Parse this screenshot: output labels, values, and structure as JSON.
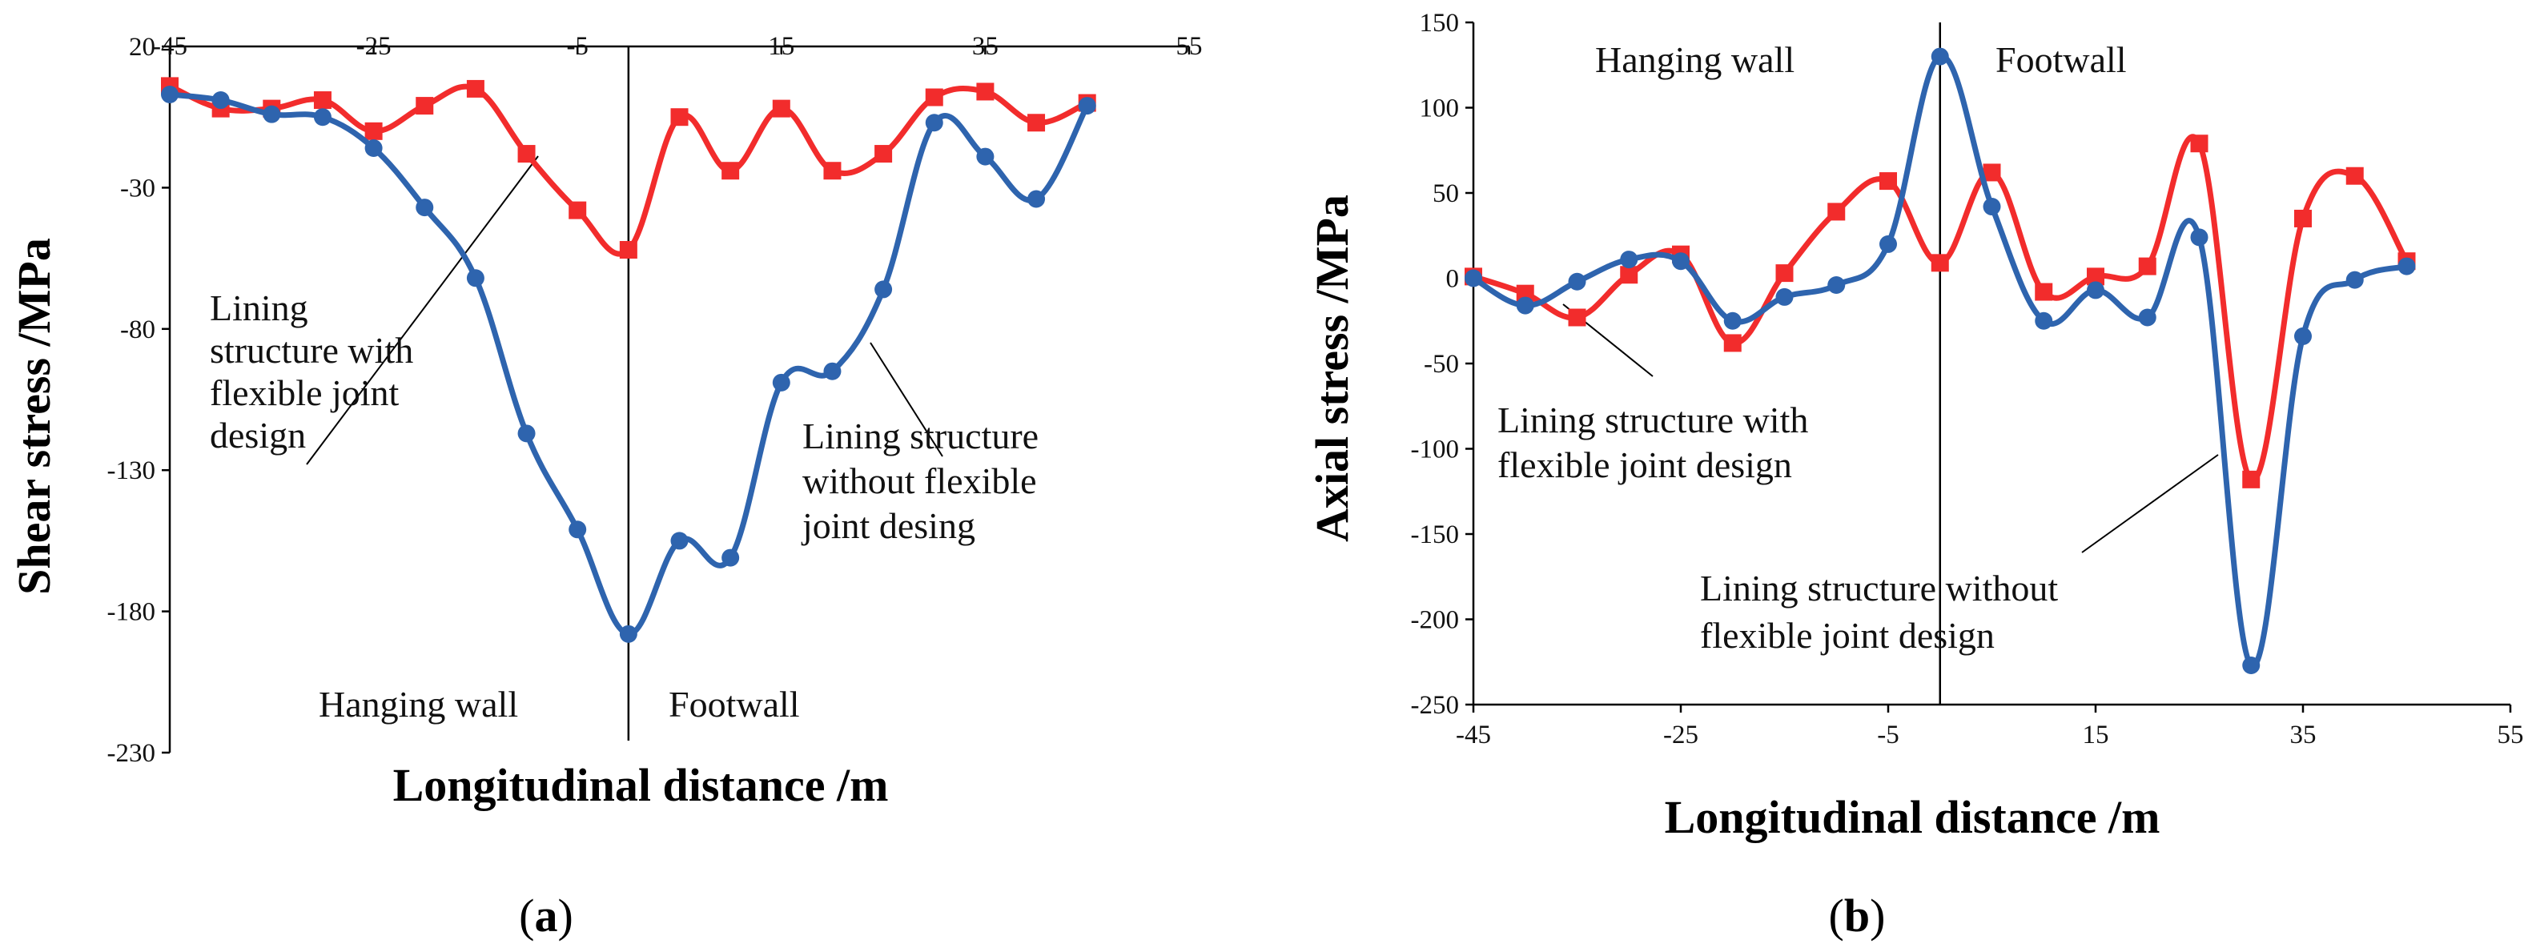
{
  "figure": {
    "panels": [
      {
        "label_open": "(",
        "label_letter": "a",
        "label_close": ")"
      },
      {
        "label_open": "(",
        "label_letter": "b",
        "label_close": ")"
      }
    ]
  },
  "chart_data": [
    {
      "type": "line",
      "panel": "a",
      "title": "",
      "xlabel": "Longitudinal distance /m",
      "ylabel": "Shear stress /MPa",
      "xlim": [
        -45,
        55
      ],
      "ylim": [
        -230,
        20
      ],
      "xticks": [
        -45,
        -25,
        -5,
        15,
        35,
        55
      ],
      "yticks": [
        20,
        -30,
        -80,
        -130,
        -180,
        -230
      ],
      "x_axis_at_top": true,
      "divider_x": 0,
      "series": [
        {
          "name": "Lining structure without flexible joint desing",
          "color": "#2E64AE",
          "marker": "circle",
          "x": [
            -45,
            -40,
            -35,
            -30,
            -25,
            -20,
            -15,
            -10,
            -5,
            0,
            5,
            10,
            15,
            20,
            25,
            30,
            35,
            40,
            45
          ],
          "y": [
            3,
            1,
            -4,
            -5,
            -16,
            -37,
            -62,
            -117,
            -151,
            -188,
            -155,
            -161,
            -99,
            -95,
            -66,
            -7,
            -19,
            -34,
            -1
          ]
        },
        {
          "name": "Lining structure with flexible joint design",
          "color": "#F22C2C",
          "marker": "square",
          "x": [
            -45,
            -40,
            -35,
            -30,
            -25,
            -20,
            -15,
            -10,
            -5,
            0,
            5,
            10,
            15,
            20,
            25,
            30,
            35,
            40,
            45
          ],
          "y": [
            6,
            -2,
            -2,
            1,
            -10,
            -1,
            5,
            -18,
            -38,
            -52,
            -5,
            -24,
            -2,
            -24,
            -18,
            2,
            4,
            -7,
            0
          ]
        }
      ],
      "annotations": [
        {
          "lines": [
            "Lining",
            "structure with",
            "flexible joint",
            "design"
          ]
        },
        {
          "lines": [
            "Lining structure",
            "without flexible",
            "joint desing"
          ]
        },
        {
          "lines": [
            "Hanging wall"
          ]
        },
        {
          "lines": [
            "Footwall"
          ]
        }
      ]
    },
    {
      "type": "line",
      "panel": "b",
      "title": "",
      "xlabel": "Longitudinal distance /m",
      "ylabel": "Axial stress /MPa",
      "xlim": [
        -45,
        55
      ],
      "ylim": [
        -250,
        150
      ],
      "xticks": [
        -45,
        -25,
        -5,
        15,
        35,
        55
      ],
      "yticks": [
        150,
        100,
        50,
        0,
        -50,
        -100,
        -150,
        -200,
        -250
      ],
      "x_axis_at_top": false,
      "divider_x": 0,
      "series": [
        {
          "name": "Lining structure without flexible joint design",
          "color": "#2E64AE",
          "marker": "circle",
          "x": [
            -45,
            -40,
            -35,
            -30,
            -25,
            -20,
            -15,
            -10,
            -5,
            0,
            5,
            10,
            15,
            20,
            25,
            30,
            35,
            40,
            45
          ],
          "y": [
            0,
            -16,
            -2,
            11,
            10,
            -25,
            -11,
            -4,
            20,
            130,
            42,
            -25,
            -7,
            -23,
            24,
            -227,
            -34,
            -1,
            7
          ]
        },
        {
          "name": "Lining structure with flexible joint design",
          "color": "#F22C2C",
          "marker": "square",
          "x": [
            -45,
            -40,
            -35,
            -30,
            -25,
            -20,
            -15,
            -10,
            -5,
            0,
            5,
            10,
            15,
            20,
            25,
            30,
            35,
            40,
            45
          ],
          "y": [
            1,
            -9,
            -23,
            2,
            14,
            -38,
            3,
            39,
            57,
            9,
            62,
            -8,
            1,
            7,
            79,
            -118,
            35,
            60,
            10
          ]
        }
      ],
      "annotations": [
        {
          "lines": [
            "Hanging wall"
          ]
        },
        {
          "lines": [
            "Footwall"
          ]
        },
        {
          "lines": [
            "Lining structure with",
            "flexible joint design"
          ]
        },
        {
          "lines": [
            "Lining structure without",
            "flexible joint design"
          ]
        }
      ]
    }
  ]
}
